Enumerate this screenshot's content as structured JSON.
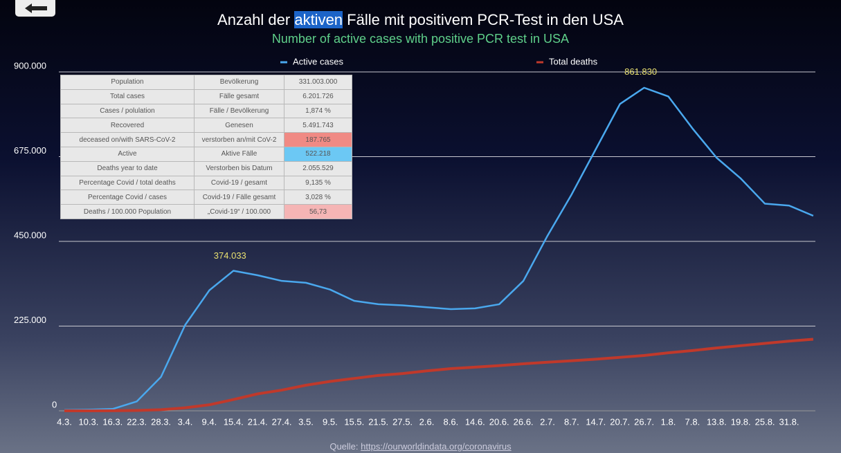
{
  "chart_data": {
    "type": "line",
    "title": [
      "Anzahl der ",
      "aktiven",
      " Fälle mit positivem PCR-Test in den USA"
    ],
    "subtitle": "Number of active cases with positive PCR test in USA",
    "categories": [
      "4.3.",
      "10.3.",
      "16.3.",
      "22.3.",
      "28.3.",
      "3.4.",
      "9.4.",
      "15.4.",
      "21.4.",
      "27.4.",
      "3.5.",
      "9.5.",
      "15.5.",
      "21.5.",
      "27.5.",
      "2.6.",
      "8.6.",
      "14.6.",
      "20.6.",
      "26.6.",
      "2.7.",
      "8.7.",
      "14.7.",
      "20.7.",
      "26.7.",
      "1.8.",
      "7.8.",
      "13.8.",
      "19.8.",
      "25.8.",
      "31.8.",
      null
    ],
    "series": [
      {
        "name": "Active cases",
        "color": "#4aa8ee",
        "values": [
          2000,
          3000,
          5000,
          25000,
          90000,
          228000,
          320000,
          372000,
          360000,
          345000,
          340000,
          322000,
          292000,
          283000,
          280000,
          275000,
          270000,
          272000,
          283000,
          345000,
          465000,
          575000,
          695000,
          815000,
          858000,
          835000,
          750000,
          672000,
          617000,
          550000,
          545000,
          518000
        ]
      },
      {
        "name": "Total deaths",
        "color": "#c0392b",
        "values": [
          0,
          100,
          200,
          1000,
          3000,
          8000,
          16000,
          30000,
          45000,
          55000,
          68000,
          78000,
          86000,
          94000,
          99000,
          106000,
          112000,
          116000,
          120000,
          125000,
          129000,
          133000,
          137000,
          142000,
          147000,
          154000,
          160000,
          167000,
          173000,
          179000,
          185000,
          190000
        ]
      }
    ],
    "ylim": [
      0,
      900000
    ],
    "yticks": [
      0,
      {
        "value": 225000,
        "label": "225.000"
      },
      {
        "value": 450000,
        "label": "450.000"
      },
      {
        "value": 675000,
        "label": "675.000"
      },
      {
        "value": 900000,
        "label": "900.000"
      }
    ],
    "grid": true,
    "legend": "top",
    "annotations": [
      {
        "text": "374.033",
        "value": 374033
      },
      {
        "text": "861.830",
        "value": 861830
      }
    ],
    "source_label": "Quelle: ",
    "source_url": "https://ourworldindata.org/coronavirus"
  },
  "table": {
    "rows": [
      [
        "Population",
        "Bevölkerung",
        "331.003.000"
      ],
      [
        "Total cases",
        "Fälle gesamt",
        "6.201.726"
      ],
      [
        "Cases / polulation",
        "Fälle / Bevölkerung",
        "1,874 %"
      ],
      [
        "Recovered",
        "Genesen",
        "5.491.743"
      ],
      [
        "deceased on/with SARS-CoV-2",
        "verstorben an/mit CoV-2",
        "187.765"
      ],
      [
        "Active",
        "Aktive Fälle",
        "522.218"
      ],
      [
        "Deaths year to date",
        "Verstorben bis Datum",
        "2.055.529"
      ],
      [
        "Percentage Covid / total deaths",
        "Covid-19 / gesamt",
        "9,135 %"
      ],
      [
        "Percentage Covid / cases",
        "Covid-19 / Fälle gesamt",
        "3,028 %"
      ],
      [
        "Deaths / 100.000 Population",
        "„Covid-19“ / 100.000",
        "56,73"
      ]
    ],
    "value_colors": [
      null,
      null,
      null,
      null,
      "#f08a84",
      "#6cc8f4",
      null,
      null,
      null,
      "#f5b5b5"
    ]
  }
}
